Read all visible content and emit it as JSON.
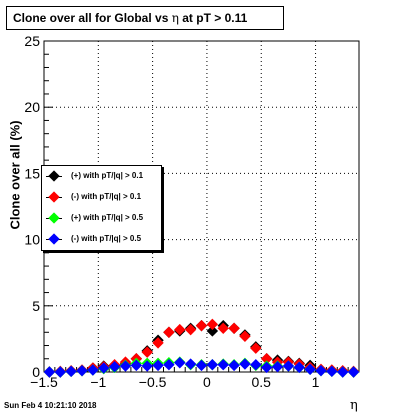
{
  "title": {
    "prefix": "Clone  over all for Global vs ",
    "greek": "η",
    "suffix": " at pT > 0.11"
  },
  "footer": "Sun Feb  4 10:21:10 2018",
  "chart_data": {
    "type": "scatter",
    "xlabel": "η",
    "ylabel": "Clone  over all (%)",
    "xlim": [
      -1.5,
      1.4
    ],
    "ylim": [
      0,
      25
    ],
    "x_ticks": [
      -1.5,
      -1,
      -0.5,
      0,
      0.5,
      1
    ],
    "x_tick_labels": [
      "−1.5",
      "−1",
      "−0.5",
      "0",
      "0.5",
      "1"
    ],
    "y_ticks": [
      0,
      5,
      10,
      15,
      20,
      25
    ],
    "y_tick_labels": [
      "0",
      "5",
      "10",
      "15",
      "20",
      "25"
    ],
    "grid": true,
    "legend_position": "center-left",
    "x": [
      -1.45,
      -1.35,
      -1.25,
      -1.15,
      -1.05,
      -0.95,
      -0.85,
      -0.75,
      -0.65,
      -0.55,
      -0.45,
      -0.35,
      -0.25,
      -0.15,
      -0.05,
      0.05,
      0.15,
      0.25,
      0.35,
      0.45,
      0.55,
      0.65,
      0.75,
      0.85,
      0.95,
      1.05,
      1.15,
      1.25,
      1.35
    ],
    "series": [
      {
        "name": "(+) with pT/|q| > 0.1",
        "color": "#000000",
        "values": [
          0.0,
          0.0,
          0.05,
          0.1,
          0.3,
          0.45,
          0.5,
          0.6,
          1.0,
          1.6,
          2.4,
          3.0,
          3.1,
          3.3,
          3.5,
          3.1,
          3.5,
          3.3,
          2.8,
          1.9,
          1.0,
          0.9,
          0.8,
          0.65,
          0.5,
          0.15,
          0.1,
          0.05,
          0.0
        ]
      },
      {
        "name": "(-) with pT/|q| > 0.1",
        "color": "#ff0000",
        "values": [
          0.0,
          0.05,
          0.1,
          0.15,
          0.3,
          0.4,
          0.55,
          0.75,
          1.0,
          1.5,
          2.2,
          3.0,
          3.2,
          3.2,
          3.5,
          3.6,
          3.3,
          3.3,
          2.7,
          1.8,
          1.0,
          0.75,
          0.75,
          0.6,
          0.35,
          0.2,
          0.15,
          0.1,
          0.05
        ]
      },
      {
        "name": "(+) with pT/|q| > 0.5",
        "color": "#00ff00",
        "values": [
          0.0,
          0.0,
          0.05,
          0.1,
          0.15,
          0.25,
          0.35,
          0.5,
          0.65,
          0.65,
          0.65,
          0.7,
          0.75,
          0.55,
          0.55,
          0.55,
          0.6,
          0.55,
          0.65,
          0.5,
          0.45,
          0.45,
          0.45,
          0.35,
          0.2,
          0.1,
          0.05,
          0.0,
          0.0
        ]
      },
      {
        "name": "(-) with pT/|q| > 0.5",
        "color": "#0000ff",
        "values": [
          0.0,
          0.0,
          0.05,
          0.1,
          0.15,
          0.3,
          0.4,
          0.45,
          0.5,
          0.45,
          0.5,
          0.55,
          0.7,
          0.6,
          0.5,
          0.55,
          0.55,
          0.5,
          0.6,
          0.55,
          0.35,
          0.4,
          0.45,
          0.35,
          0.2,
          0.1,
          0.05,
          0.0,
          0.0
        ]
      }
    ]
  }
}
